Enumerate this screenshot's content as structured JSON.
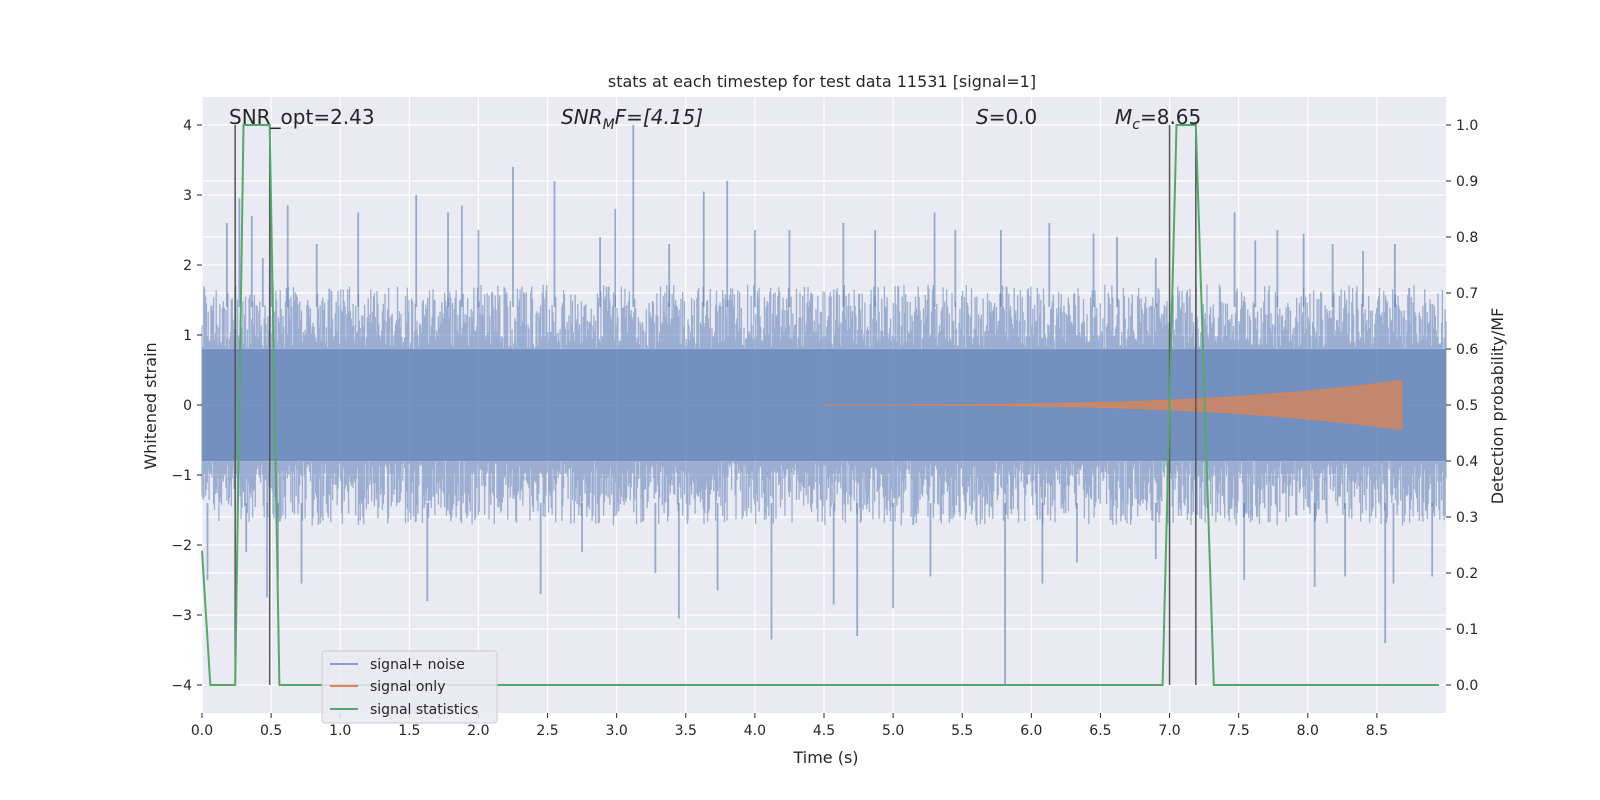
{
  "chart_data": {
    "type": "line",
    "title": "stats at each timestep for test data 11531 [signal=1]",
    "xlabel": "Time (s)",
    "ylabel": "Whitened strain",
    "ylabel_right": "Detection probability/MF",
    "xlim": [
      0.0,
      9.0
    ],
    "ylim": [
      -4.4,
      4.4
    ],
    "ylim_right": [
      -0.05,
      1.05
    ],
    "xticks": [
      0.0,
      0.5,
      1.0,
      1.5,
      2.0,
      2.5,
      3.0,
      3.5,
      4.0,
      4.5,
      5.0,
      5.5,
      6.0,
      6.5,
      7.0,
      7.5,
      8.0,
      8.5
    ],
    "xtick_labels": [
      "0.0",
      "0.5",
      "1.0",
      "1.5",
      "2.0",
      "2.5",
      "3.0",
      "3.5",
      "4.0",
      "4.5",
      "5.0",
      "5.5",
      "6.0",
      "6.5",
      "7.0",
      "7.5",
      "8.0",
      "8.5"
    ],
    "yticks": [
      -4,
      -3,
      -2,
      -1,
      0,
      1,
      2,
      3,
      4
    ],
    "ytick_labels": [
      "−4",
      "−3",
      "−2",
      "−1",
      "0",
      "1",
      "2",
      "3",
      "4"
    ],
    "yticks_right": [
      0.0,
      0.1,
      0.2,
      0.3,
      0.4,
      0.5,
      0.6,
      0.7,
      0.8,
      0.9,
      1.0
    ],
    "ytick_right_labels": [
      "0.0",
      "0.1",
      "0.2",
      "0.3",
      "0.4",
      "0.5",
      "0.6",
      "0.7",
      "0.8",
      "0.9",
      "1.0"
    ],
    "grid": true,
    "legend_position": "lower-left",
    "annotations": {
      "snr_opt": "SNR_opt=2.43",
      "snr_mf_main": "SNR",
      "snr_mf_sub": "M",
      "snr_mf_rest": "F=[4.15]",
      "s_main": "S",
      "s_rest": "=0.0",
      "mc_main": "M",
      "mc_sub": "c",
      "mc_rest": "=8.65"
    },
    "vertical_lines_s": [
      0.24,
      0.49,
      7.0,
      7.19
    ],
    "series": [
      {
        "name": "signal+ noise",
        "color": "#4c72b0",
        "kind": "noise",
        "x_range": [
          0.0,
          9.0
        ],
        "core_band": [
          -0.8,
          0.8
        ],
        "envelope_band": [
          -1.6,
          1.6
        ],
        "peaks": [
          [
            0.18,
            2.6
          ],
          [
            0.27,
            2.95
          ],
          [
            0.36,
            2.7
          ],
          [
            0.44,
            2.1
          ],
          [
            0.5,
            2.4
          ],
          [
            0.62,
            2.85
          ],
          [
            0.83,
            2.3
          ],
          [
            1.13,
            2.75
          ],
          [
            1.55,
            3.0
          ],
          [
            1.78,
            2.75
          ],
          [
            1.88,
            2.85
          ],
          [
            2.0,
            2.5
          ],
          [
            2.25,
            3.4
          ],
          [
            2.55,
            3.2
          ],
          [
            2.88,
            2.4
          ],
          [
            2.99,
            2.8
          ],
          [
            3.12,
            4.0
          ],
          [
            3.38,
            2.3
          ],
          [
            3.63,
            3.05
          ],
          [
            3.8,
            3.2
          ],
          [
            4.0,
            2.5
          ],
          [
            4.25,
            2.5
          ],
          [
            4.64,
            2.6
          ],
          [
            4.87,
            2.5
          ],
          [
            5.3,
            2.75
          ],
          [
            5.45,
            2.5
          ],
          [
            5.78,
            2.5
          ],
          [
            6.13,
            2.6
          ],
          [
            6.45,
            2.45
          ],
          [
            6.62,
            2.4
          ],
          [
            6.9,
            2.1
          ],
          [
            7.47,
            2.75
          ],
          [
            7.62,
            2.35
          ],
          [
            7.78,
            2.5
          ],
          [
            7.97,
            2.45
          ],
          [
            8.18,
            2.3
          ],
          [
            8.4,
            2.2
          ],
          [
            8.63,
            2.3
          ]
        ],
        "troughs": [
          [
            0.04,
            -2.5
          ],
          [
            0.32,
            -2.1
          ],
          [
            0.47,
            -2.75
          ],
          [
            0.55,
            -2.5
          ],
          [
            0.72,
            -2.55
          ],
          [
            1.63,
            -2.8
          ],
          [
            2.45,
            -2.7
          ],
          [
            2.75,
            -2.1
          ],
          [
            3.28,
            -2.4
          ],
          [
            3.45,
            -3.05
          ],
          [
            3.73,
            -2.65
          ],
          [
            4.12,
            -3.35
          ],
          [
            4.57,
            -2.85
          ],
          [
            4.74,
            -3.3
          ],
          [
            5.0,
            -2.9
          ],
          [
            5.27,
            -2.45
          ],
          [
            5.81,
            -4.0
          ],
          [
            6.08,
            -2.55
          ],
          [
            6.33,
            -2.25
          ],
          [
            6.9,
            -2.2
          ],
          [
            7.54,
            -2.5
          ],
          [
            8.05,
            -2.6
          ],
          [
            8.27,
            -2.45
          ],
          [
            8.56,
            -3.4
          ],
          [
            8.62,
            -2.55
          ],
          [
            8.9,
            -2.45
          ]
        ]
      },
      {
        "name": "signal only",
        "color": "#dd8452",
        "kind": "chirp",
        "x_range": [
          4.5,
          8.68
        ],
        "amplitude_start": 0.0,
        "amplitude_end": 0.35
      },
      {
        "name": "signal statistics",
        "color": "#55a868",
        "kind": "line",
        "axis": "right",
        "x": [
          0.0,
          0.06,
          0.24,
          0.3,
          0.49,
          0.56,
          0.64,
          6.95,
          7.05,
          7.19,
          7.32,
          7.4,
          8.95
        ],
        "y": [
          0.24,
          0.0,
          0.0,
          1.0,
          1.0,
          0.0,
          0.0,
          0.0,
          1.0,
          1.0,
          0.0,
          0.0,
          0.0
        ]
      }
    ]
  }
}
